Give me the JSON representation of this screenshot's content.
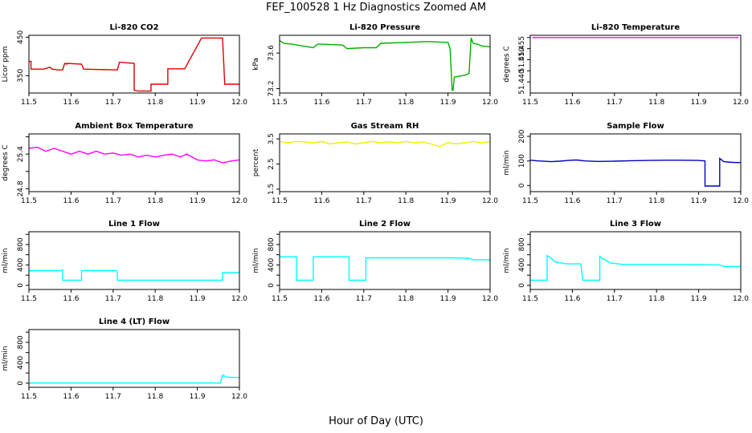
{
  "figure": {
    "title": "FEF_100528  1 Hz Diagnostics Zoomed AM",
    "xlabel": "Hour of Day (UTC)"
  },
  "chart_data": [
    {
      "type": "line",
      "title": "Li-820 CO2",
      "ylabel": "Licor ppm",
      "color": "#e00000",
      "xlim": [
        11.5,
        12.0
      ],
      "ylim": [
        305,
        455
      ],
      "xticks": [
        "11.5",
        "11.6",
        "11.7",
        "11.8",
        "11.9",
        "12.0"
      ],
      "yticks": [
        {
          "v": 350,
          "label": "350"
        },
        {
          "v": 450,
          "label": "450"
        }
      ],
      "series": [
        {
          "x": [
            11.5,
            11.505,
            11.505,
            11.535,
            11.55,
            11.555,
            11.57,
            11.58,
            11.585,
            11.59,
            11.59,
            11.625,
            11.63,
            11.63,
            11.71,
            11.715,
            11.715,
            11.75,
            11.75,
            11.76,
            11.76,
            11.79,
            11.79,
            11.83,
            11.83,
            11.87,
            11.91,
            11.91,
            11.95,
            11.96,
            11.965,
            11.965,
            12.0
          ],
          "y": [
            387,
            387,
            367,
            367,
            372,
            367,
            365,
            365,
            382,
            380,
            382,
            380,
            367,
            367,
            365,
            385,
            385,
            382,
            312,
            310,
            310,
            310,
            328,
            328,
            368,
            368,
            448,
            448,
            448,
            448,
            330,
            328,
            328
          ]
        }
      ]
    },
    {
      "type": "line",
      "title": "Li-820 Pressure",
      "ylabel": "kPa",
      "color": "#00b000",
      "xlim": [
        11.5,
        12.0
      ],
      "ylim": [
        73.15,
        73.8
      ],
      "xticks": [
        "11.5",
        "11.6",
        "11.7",
        "11.8",
        "11.9",
        "12.0"
      ],
      "yticks": [
        {
          "v": 73.2,
          "label": "73.2"
        },
        {
          "v": 73.6,
          "label": "73.6"
        }
      ],
      "series": [
        {
          "x": [
            11.5,
            11.51,
            11.53,
            11.58,
            11.59,
            11.6,
            11.65,
            11.66,
            11.7,
            11.73,
            11.74,
            11.8,
            11.85,
            11.9,
            11.905,
            11.91,
            11.912,
            11.915,
            11.94,
            11.95,
            11.955,
            11.96,
            11.97,
            11.98,
            12.0
          ],
          "y": [
            73.74,
            73.71,
            73.7,
            73.66,
            73.7,
            73.7,
            73.69,
            73.65,
            73.66,
            73.66,
            73.71,
            73.72,
            73.73,
            73.72,
            73.65,
            73.18,
            73.18,
            73.33,
            73.35,
            73.37,
            73.77,
            73.71,
            73.7,
            73.68,
            73.67
          ]
        }
      ]
    },
    {
      "type": "line",
      "title": "Li-820 Temperature",
      "ylabel": "degrees C",
      "color": "#ff00ff",
      "xlim": [
        11.5,
        12.0
      ],
      "ylim": [
        51.435,
        51.461
      ],
      "xticks": [
        "11.5",
        "11.6",
        "11.7",
        "11.8",
        "11.9",
        "12.0"
      ],
      "yticks": [
        {
          "v": 51.44,
          "label": "51.440"
        },
        {
          "v": 51.445,
          "label": ""
        },
        {
          "v": 51.45,
          "label": "51.450"
        },
        {
          "v": 51.455,
          "label": "51.455"
        },
        {
          "v": 51.46,
          "label": ""
        }
      ],
      "series": [
        {
          "x": [
            11.505,
            11.51,
            11.52,
            11.53,
            11.535,
            11.54,
            11.545,
            11.55,
            11.555,
            11.56,
            11.57,
            11.58,
            11.585,
            11.59,
            11.6,
            11.61,
            11.62,
            11.63,
            11.64,
            11.66,
            11.67,
            11.68,
            11.69,
            11.7,
            11.71,
            11.715,
            11.72,
            11.73,
            11.74,
            11.75,
            11.76,
            11.77,
            11.78,
            11.79,
            11.8,
            11.81,
            11.82,
            11.83,
            11.84,
            11.85,
            11.86,
            11.87,
            11.88,
            11.89,
            11.91,
            11.92,
            11.93,
            11.935,
            11.94,
            11.95,
            11.96,
            11.965,
            11.97,
            11.98,
            11.99,
            11.995
          ],
          "y": [
            51.46,
            51.46,
            51.46,
            51.46,
            51.46,
            51.46,
            51.46,
            51.46,
            51.46,
            51.46,
            51.46,
            51.46,
            51.46,
            51.46,
            51.46,
            51.46,
            51.46,
            51.46,
            51.46,
            51.46,
            51.46,
            51.46,
            51.46,
            51.46,
            51.46,
            51.46,
            51.46,
            51.46,
            51.46,
            51.46,
            51.46,
            51.46,
            51.46,
            51.46,
            51.46,
            51.46,
            51.46,
            51.46,
            51.46,
            51.46,
            51.46,
            51.46,
            51.46,
            51.46,
            51.46,
            51.46,
            51.46,
            51.46,
            51.46,
            51.46,
            51.46,
            51.46,
            51.46,
            51.46,
            51.46,
            51.46
          ]
        }
      ]
    },
    {
      "type": "line",
      "title": "Ambient Box Temperature",
      "ylabel": "degrees C",
      "color": "#ff00ff",
      "xlim": [
        11.5,
        12.0
      ],
      "ylim": [
        24.75,
        25.75
      ],
      "xticks": [
        "11.5",
        "11.6",
        "11.7",
        "11.8",
        "11.9",
        "12.0"
      ],
      "yticks": [
        {
          "v": 24.8,
          "label": "24.8"
        },
        {
          "v": 25.1,
          "label": ""
        },
        {
          "v": 25.4,
          "label": "25.4"
        },
        {
          "v": 25.7,
          "label": ""
        }
      ],
      "series": [
        {
          "x": [
            11.5,
            11.52,
            11.54,
            11.56,
            11.58,
            11.6,
            11.62,
            11.64,
            11.66,
            11.68,
            11.7,
            11.72,
            11.74,
            11.76,
            11.78,
            11.8,
            11.82,
            11.84,
            11.86,
            11.875,
            11.9,
            11.92,
            11.94,
            11.96,
            11.98,
            12.0
          ],
          "y": [
            25.5,
            25.52,
            25.45,
            25.5,
            25.45,
            25.4,
            25.45,
            25.4,
            25.45,
            25.4,
            25.42,
            25.38,
            25.4,
            25.35,
            25.38,
            25.35,
            25.38,
            25.4,
            25.35,
            25.4,
            25.3,
            25.28,
            25.3,
            25.25,
            25.28,
            25.3
          ]
        }
      ]
    },
    {
      "type": "line",
      "title": "Gas Stream RH",
      "ylabel": "percent",
      "color": "#f0f000",
      "xlim": [
        11.5,
        12.0
      ],
      "ylim": [
        1.4,
        3.7
      ],
      "xticks": [
        "11.5",
        "11.6",
        "11.7",
        "11.8",
        "11.9",
        "12.0"
      ],
      "yticks": [
        {
          "v": 1.5,
          "label": "1.5"
        },
        {
          "v": 2.5,
          "label": "2.5"
        },
        {
          "v": 3.5,
          "label": "3.5"
        }
      ],
      "series": [
        {
          "x": [
            11.5,
            11.52,
            11.54,
            11.56,
            11.58,
            11.6,
            11.62,
            11.64,
            11.66,
            11.68,
            11.7,
            11.72,
            11.74,
            11.76,
            11.78,
            11.8,
            11.82,
            11.84,
            11.86,
            11.88,
            11.9,
            11.92,
            11.94,
            11.96,
            11.98,
            12.0
          ],
          "y": [
            3.4,
            3.35,
            3.4,
            3.38,
            3.35,
            3.4,
            3.3,
            3.35,
            3.38,
            3.3,
            3.35,
            3.4,
            3.35,
            3.38,
            3.35,
            3.4,
            3.35,
            3.38,
            3.3,
            3.2,
            3.35,
            3.3,
            3.35,
            3.4,
            3.35,
            3.4
          ]
        }
      ]
    },
    {
      "type": "line",
      "title": "Sample Flow",
      "ylabel": "ml/min",
      "color": "#0000c0",
      "xlim": [
        11.5,
        12.0
      ],
      "ylim": [
        -25,
        210
      ],
      "xticks": [
        "11.5",
        "11.6",
        "11.7",
        "11.8",
        "11.9",
        "12.0"
      ],
      "yticks": [
        {
          "v": 0,
          "label": "0"
        },
        {
          "v": 100,
          "label": "100"
        },
        {
          "v": 200,
          "label": "200"
        }
      ],
      "series": [
        {
          "x": [
            11.5,
            11.52,
            11.55,
            11.57,
            11.59,
            11.61,
            11.63,
            11.66,
            11.7,
            11.74,
            11.78,
            11.82,
            11.86,
            11.9,
            11.915,
            11.915,
            11.95,
            11.95,
            11.96,
            11.98,
            12.0
          ],
          "y": [
            103,
            100,
            97,
            99,
            102,
            104,
            100,
            98,
            99,
            101,
            102,
            103,
            103,
            102,
            100,
            -2,
            -2,
            110,
            97,
            94,
            93
          ]
        }
      ]
    },
    {
      "type": "line",
      "title": "Line 1 Flow",
      "ylabel": "ml/min",
      "color": "#00ffff",
      "xlim": [
        11.5,
        12.0
      ],
      "ylim": [
        -80,
        1050
      ],
      "xticks": [
        "11.5",
        "11.6",
        "11.7",
        "11.8",
        "11.9",
        "12.0"
      ],
      "yticks": [
        {
          "v": 0,
          "label": "0"
        },
        {
          "v": 200,
          "label": ""
        },
        {
          "v": 400,
          "label": "400"
        },
        {
          "v": 600,
          "label": ""
        },
        {
          "v": 800,
          "label": "800"
        },
        {
          "v": 1000,
          "label": ""
        }
      ],
      "series": [
        {
          "x": [
            11.5,
            11.575,
            11.58,
            11.58,
            11.625,
            11.625,
            11.705,
            11.71,
            11.71,
            11.955,
            11.96,
            11.96,
            12.0
          ],
          "y": [
            290,
            290,
            300,
            100,
            100,
            290,
            290,
            280,
            100,
            100,
            100,
            250,
            250
          ]
        }
      ]
    },
    {
      "type": "line",
      "title": "Line 2 Flow",
      "ylabel": "ml/min",
      "color": "#00ffff",
      "xlim": [
        11.5,
        12.0
      ],
      "ylim": [
        -80,
        1050
      ],
      "xticks": [
        "11.5",
        "11.6",
        "11.7",
        "11.8",
        "11.9",
        "12.0"
      ],
      "yticks": [
        {
          "v": 0,
          "label": "0"
        },
        {
          "v": 200,
          "label": ""
        },
        {
          "v": 400,
          "label": "400"
        },
        {
          "v": 600,
          "label": ""
        },
        {
          "v": 800,
          "label": "800"
        },
        {
          "v": 1000,
          "label": ""
        }
      ],
      "series": [
        {
          "x": [
            11.5,
            11.54,
            11.54,
            11.58,
            11.58,
            11.665,
            11.665,
            11.705,
            11.705,
            11.8,
            11.9,
            11.95,
            11.96,
            12.0
          ],
          "y": [
            560,
            560,
            100,
            100,
            560,
            560,
            100,
            100,
            540,
            540,
            540,
            530,
            500,
            500
          ]
        }
      ]
    },
    {
      "type": "line",
      "title": "Line 3 Flow",
      "ylabel": "ml/min",
      "color": "#00ffff",
      "xlim": [
        11.5,
        12.0
      ],
      "ylim": [
        -80,
        1050
      ],
      "xticks": [
        "11.5",
        "11.6",
        "11.7",
        "11.8",
        "11.9",
        "12.0"
      ],
      "yticks": [
        {
          "v": 0,
          "label": "0"
        },
        {
          "v": 200,
          "label": ""
        },
        {
          "v": 400,
          "label": "400"
        },
        {
          "v": 600,
          "label": ""
        },
        {
          "v": 800,
          "label": "800"
        },
        {
          "v": 1000,
          "label": ""
        }
      ],
      "series": [
        {
          "x": [
            11.5,
            11.54,
            11.54,
            11.545,
            11.56,
            11.585,
            11.62,
            11.625,
            11.625,
            11.665,
            11.665,
            11.67,
            11.69,
            11.72,
            11.8,
            11.9,
            11.95,
            11.96,
            12.0
          ],
          "y": [
            100,
            100,
            580,
            560,
            460,
            420,
            420,
            100,
            100,
            100,
            570,
            540,
            440,
            410,
            410,
            410,
            400,
            370,
            370
          ]
        }
      ]
    },
    {
      "type": "line",
      "title": "Line 4 (LT) Flow",
      "ylabel": "ml/min",
      "color": "#00ffff",
      "xlim": [
        11.5,
        12.0
      ],
      "ylim": [
        -80,
        1050
      ],
      "xticks": [
        "11.5",
        "11.6",
        "11.7",
        "11.8",
        "11.9",
        "12.0"
      ],
      "yticks": [
        {
          "v": 0,
          "label": "0"
        },
        {
          "v": 200,
          "label": ""
        },
        {
          "v": 400,
          "label": "400"
        },
        {
          "v": 600,
          "label": ""
        },
        {
          "v": 800,
          "label": "800"
        },
        {
          "v": 1000,
          "label": ""
        }
      ],
      "series": [
        {
          "x": [
            11.5,
            11.6,
            11.7,
            11.8,
            11.9,
            11.955,
            11.96,
            11.97,
            12.0
          ],
          "y": [
            3,
            3,
            3,
            3,
            3,
            3,
            160,
            120,
            110
          ]
        }
      ]
    }
  ]
}
